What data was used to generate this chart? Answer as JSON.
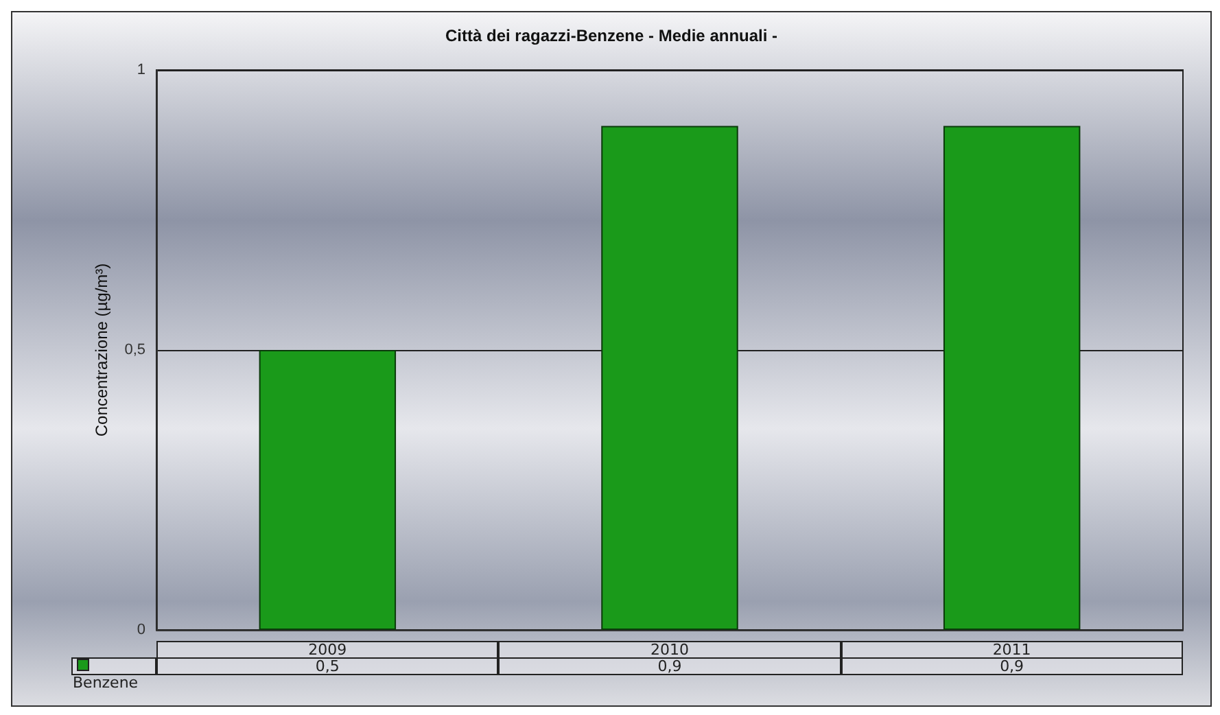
{
  "chart_data": {
    "type": "bar",
    "title": "Città dei ragazzi-Benzene - Medie annuali -",
    "ylabel": "Concentrazione (µg/m³)",
    "categories": [
      "2009",
      "2010",
      "2011"
    ],
    "series": [
      {
        "name": "Benzene",
        "color": "#1a9a1a",
        "values": [
          0.5,
          0.9,
          0.9
        ],
        "value_labels": [
          "0,5",
          "0,9",
          "0,9"
        ]
      }
    ],
    "ylim": [
      0,
      1
    ],
    "yticks": [
      0,
      {
        "value": 0.5,
        "label": "0,5"
      },
      1
    ],
    "grid": "y",
    "legend": "bottom"
  }
}
